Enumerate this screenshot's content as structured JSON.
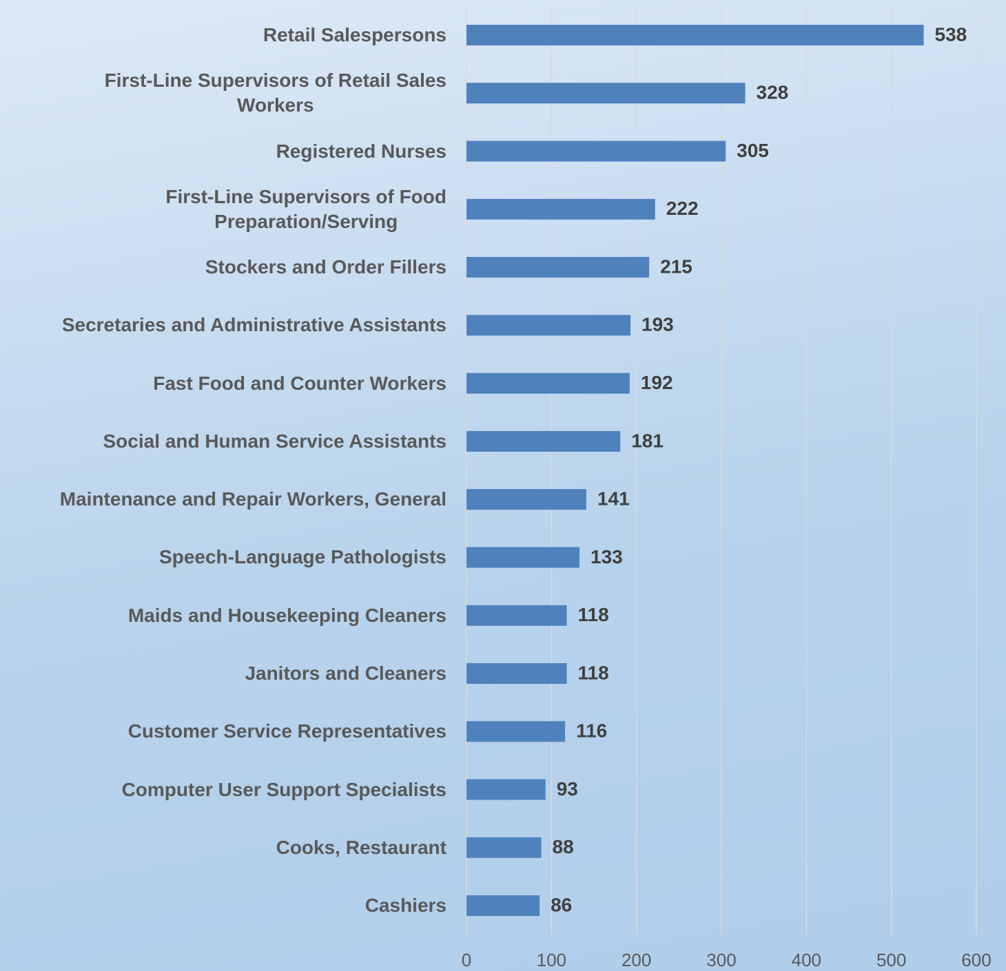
{
  "chart_data": {
    "type": "bar",
    "orientation": "horizontal",
    "categories": [
      "Retail Salespersons",
      "First-Line Supervisors of Retail Sales\nWorkers",
      "Registered Nurses",
      "First-Line Supervisors of Food\nPreparation/Serving",
      "Stockers and Order Fillers",
      "Secretaries and Administrative Assistants",
      "Fast Food and Counter Workers",
      "Social and Human Service Assistants",
      "Maintenance and Repair Workers, General",
      "Speech-Language Pathologists",
      "Maids and Housekeeping Cleaners",
      "Janitors and Cleaners",
      "Customer Service Representatives",
      "Computer User Support Specialists",
      "Cooks, Restaurant",
      "Cashiers"
    ],
    "values": [
      538,
      328,
      305,
      222,
      215,
      193,
      192,
      181,
      141,
      133,
      118,
      118,
      116,
      93,
      88,
      86
    ],
    "color": "#4f81bd",
    "xlim": [
      0,
      600
    ],
    "xticks": [
      0,
      100,
      200,
      300,
      400,
      500,
      600
    ],
    "grid": true
  }
}
